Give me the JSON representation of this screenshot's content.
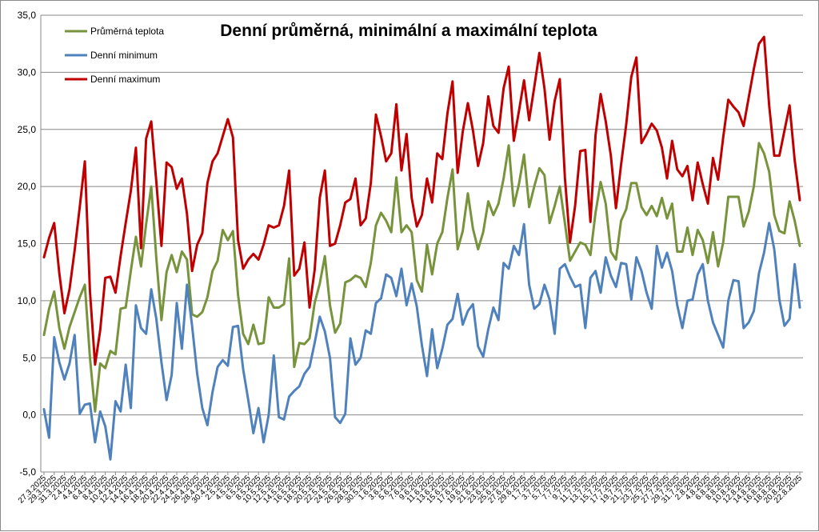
{
  "chart_data": {
    "type": "line",
    "title": "Denní průměrná, minimální a maximální teplota",
    "xlabel": "",
    "ylabel": "",
    "ylim": [
      -5,
      35
    ],
    "yticks": [
      "-5,0",
      "0,0",
      "5,0",
      "10,0",
      "15,0",
      "20,0",
      "25,0",
      "30,0",
      "35,0"
    ],
    "grid": "horizontal",
    "legend_position": "top-left",
    "x_tick_labels": [
      "27.3.2025",
      "29.3.2025",
      "31.3.2025",
      "2.4.2025",
      "4.4.2025",
      "6.4.2025",
      "8.4.2025",
      "10.4.2025",
      "12.4.2025",
      "14.4.2025",
      "16.4.2025",
      "18.4.2025",
      "20.4.2025",
      "22.4.2025",
      "24.4.2025",
      "26.4.2025",
      "28.4.2025",
      "30.4.2025",
      "2.5.2025",
      "4.5.2025",
      "6.5.2025",
      "8.5.2025",
      "10.5.2025",
      "12.5.2025",
      "14.5.2025",
      "16.5.2025",
      "18.5.2025",
      "20.5.2025",
      "22.5.2025",
      "24.5.2025",
      "26.5.2025",
      "28.5.2025",
      "30.5.2025",
      "1.6.2025",
      "3.6.2025",
      "5.6.2025",
      "7.6.2025",
      "9.6.2025",
      "11.6.2025",
      "13.6.2025",
      "15.6.2025",
      "17.6.2025",
      "19.6.2025",
      "21.6.2025",
      "23.6.2025",
      "25.6.2025",
      "27.6.2025",
      "29.6.2025",
      "1.7.2025",
      "3.7.2025",
      "5.7.2025",
      "7.7.2025",
      "9.7.2025",
      "11.7.2025",
      "13.7.2025",
      "15.7.2025",
      "17.7.2025",
      "19.7.2025",
      "21.7.2025",
      "23.7.2025",
      "25.7.2025",
      "27.7.2025",
      "29.7.2025",
      "31.7.2025",
      "2.8.2025",
      "4.8.2025",
      "6.8.2025",
      "8.8.2025",
      "10.8.2025",
      "12.8.2025",
      "14.8.2025",
      "16.8.2025",
      "18.8.2025",
      "20.8.2025",
      "22.8.2025"
    ],
    "series": [
      {
        "name": "Průměrná teplota",
        "color": "#77933c",
        "values": [
          7.0,
          9.3,
          10.8,
          7.6,
          5.8,
          7.7,
          9.0,
          10.3,
          11.4,
          5.0,
          0.3,
          4.5,
          4.1,
          5.6,
          5.3,
          9.3,
          9.4,
          12.6,
          15.6,
          13.0,
          16.7,
          20.0,
          13.7,
          8.3,
          12.5,
          14.0,
          12.5,
          14.3,
          13.6,
          8.8,
          8.6,
          9.0,
          10.3,
          12.6,
          13.5,
          16.2,
          15.3,
          16.1,
          10.5,
          7.1,
          6.2,
          7.9,
          6.2,
          6.3,
          10.3,
          9.4,
          9.4,
          9.7,
          13.7,
          4.2,
          6.3,
          6.2,
          6.7,
          9.8,
          11.5,
          13.9,
          9.6,
          7.2,
          8.0,
          11.6,
          11.8,
          12.2,
          12.0,
          11.2,
          13.3,
          16.6,
          17.7,
          17.0,
          16.0,
          20.8,
          16.0,
          16.6,
          16.0,
          11.8,
          10.8,
          14.9,
          12.3,
          15.0,
          16.0,
          19.0,
          21.5,
          14.5,
          16.1,
          19.4,
          16.3,
          14.5,
          16.0,
          18.7,
          17.5,
          18.5,
          20.7,
          23.6,
          18.3,
          20.2,
          22.8,
          18.2,
          20.0,
          21.6,
          21.0,
          16.8,
          18.3,
          20.0,
          16.8,
          13.5,
          14.3,
          15.1,
          14.9,
          14.0,
          17.7,
          20.4,
          18.5,
          14.3,
          13.6,
          17.0,
          18.0,
          20.3,
          20.3,
          18.2,
          17.5,
          18.3,
          17.4,
          19.0,
          17.2,
          18.5,
          14.3,
          14.3,
          16.4,
          14.0,
          16.2,
          15.3,
          13.3,
          16.0,
          13.0,
          15.1,
          19.1,
          19.1,
          19.1,
          16.5,
          17.8,
          20.0,
          23.8,
          22.9,
          21.3,
          17.5,
          16.1,
          15.9,
          18.7,
          17.0,
          14.8
        ]
      },
      {
        "name": "Denní minimum",
        "color": "#4f81bd",
        "values": [
          0.5,
          -2.0,
          6.8,
          4.6,
          3.1,
          4.5,
          7.0,
          0.1,
          0.9,
          1.0,
          -2.4,
          0.3,
          -1.0,
          -3.9,
          1.2,
          0.3,
          4.4,
          0.6,
          9.6,
          7.6,
          7.1,
          11.0,
          8.4,
          4.6,
          1.3,
          3.5,
          9.8,
          5.8,
          11.4,
          7.8,
          3.6,
          0.6,
          -0.9,
          2.0,
          4.2,
          4.8,
          4.3,
          7.7,
          7.8,
          4.0,
          1.3,
          -1.6,
          0.6,
          -2.4,
          0.0,
          5.2,
          -0.2,
          -0.4,
          1.6,
          2.1,
          2.5,
          3.6,
          4.2,
          6.3,
          8.6,
          7.3,
          5.0,
          -0.2,
          -0.7,
          0.1,
          6.7,
          4.4,
          5.0,
          7.4,
          7.1,
          9.8,
          10.2,
          12.3,
          12.0,
          10.4,
          12.8,
          9.6,
          11.5,
          9.5,
          6.1,
          3.4,
          7.5,
          4.1,
          5.8,
          7.9,
          8.4,
          10.6,
          7.9,
          9.1,
          9.7,
          6.0,
          5.1,
          7.5,
          9.4,
          8.3,
          13.3,
          12.8,
          14.8,
          14.0,
          16.7,
          11.4,
          9.3,
          9.7,
          11.4,
          10.1,
          7.1,
          12.8,
          13.2,
          12.1,
          11.2,
          11.4,
          7.6,
          12.0,
          12.6,
          10.7,
          13.8,
          12.2,
          11.2,
          13.3,
          13.2,
          10.1,
          13.8,
          12.6,
          10.7,
          9.3,
          14.8,
          12.9,
          14.2,
          12.6,
          9.6,
          7.6,
          10.0,
          10.1,
          12.3,
          13.2,
          10.0,
          8.1,
          7.0,
          5.9,
          10.0,
          11.8,
          11.7,
          7.6,
          8.1,
          9.1,
          12.4,
          14.2,
          16.8,
          14.5,
          10.1,
          7.8,
          8.4,
          13.2,
          9.4
        ]
      },
      {
        "name": "Denní maximum",
        "color": "#c00000",
        "values": [
          13.8,
          15.5,
          16.8,
          12.4,
          8.9,
          11.0,
          14.4,
          18.2,
          22.2,
          10.8,
          4.4,
          7.4,
          12.0,
          12.1,
          10.7,
          13.9,
          16.8,
          19.6,
          23.4,
          14.6,
          24.2,
          25.7,
          20.4,
          14.8,
          22.1,
          21.7,
          19.8,
          20.7,
          17.6,
          12.6,
          14.9,
          15.9,
          20.3,
          22.2,
          22.9,
          24.4,
          25.9,
          24.3,
          15.3,
          12.8,
          13.6,
          14.1,
          13.6,
          14.9,
          16.6,
          16.4,
          16.6,
          18.3,
          21.4,
          12.2,
          12.8,
          15.1,
          9.4,
          12.7,
          19.0,
          21.4,
          14.8,
          15.0,
          16.6,
          18.6,
          18.9,
          20.7,
          16.6,
          17.2,
          20.3,
          26.3,
          24.4,
          22.2,
          22.9,
          27.2,
          21.4,
          24.6,
          19.0,
          16.5,
          17.5,
          20.7,
          18.6,
          22.9,
          22.4,
          26.4,
          29.2,
          21.2,
          24.8,
          27.3,
          24.9,
          21.8,
          23.8,
          27.9,
          25.3,
          24.7,
          28.6,
          30.5,
          24.0,
          26.6,
          29.3,
          25.8,
          28.7,
          31.7,
          28.6,
          24.1,
          27.5,
          29.4,
          20.8,
          15.1,
          18.3,
          23.1,
          23.2,
          16.9,
          24.5,
          28.1,
          25.7,
          22.7,
          18.1,
          21.9,
          25.4,
          29.6,
          31.3,
          23.8,
          24.6,
          25.5,
          24.9,
          23.4,
          20.7,
          24.0,
          21.5,
          20.9,
          21.8,
          18.8,
          22.1,
          20.2,
          18.5,
          22.5,
          20.6,
          24.3,
          27.6,
          27.0,
          26.5,
          25.3,
          27.8,
          30.3,
          32.5,
          33.1,
          27.1,
          22.7,
          22.7,
          24.9,
          27.1,
          22.3,
          18.8
        ]
      }
    ]
  }
}
